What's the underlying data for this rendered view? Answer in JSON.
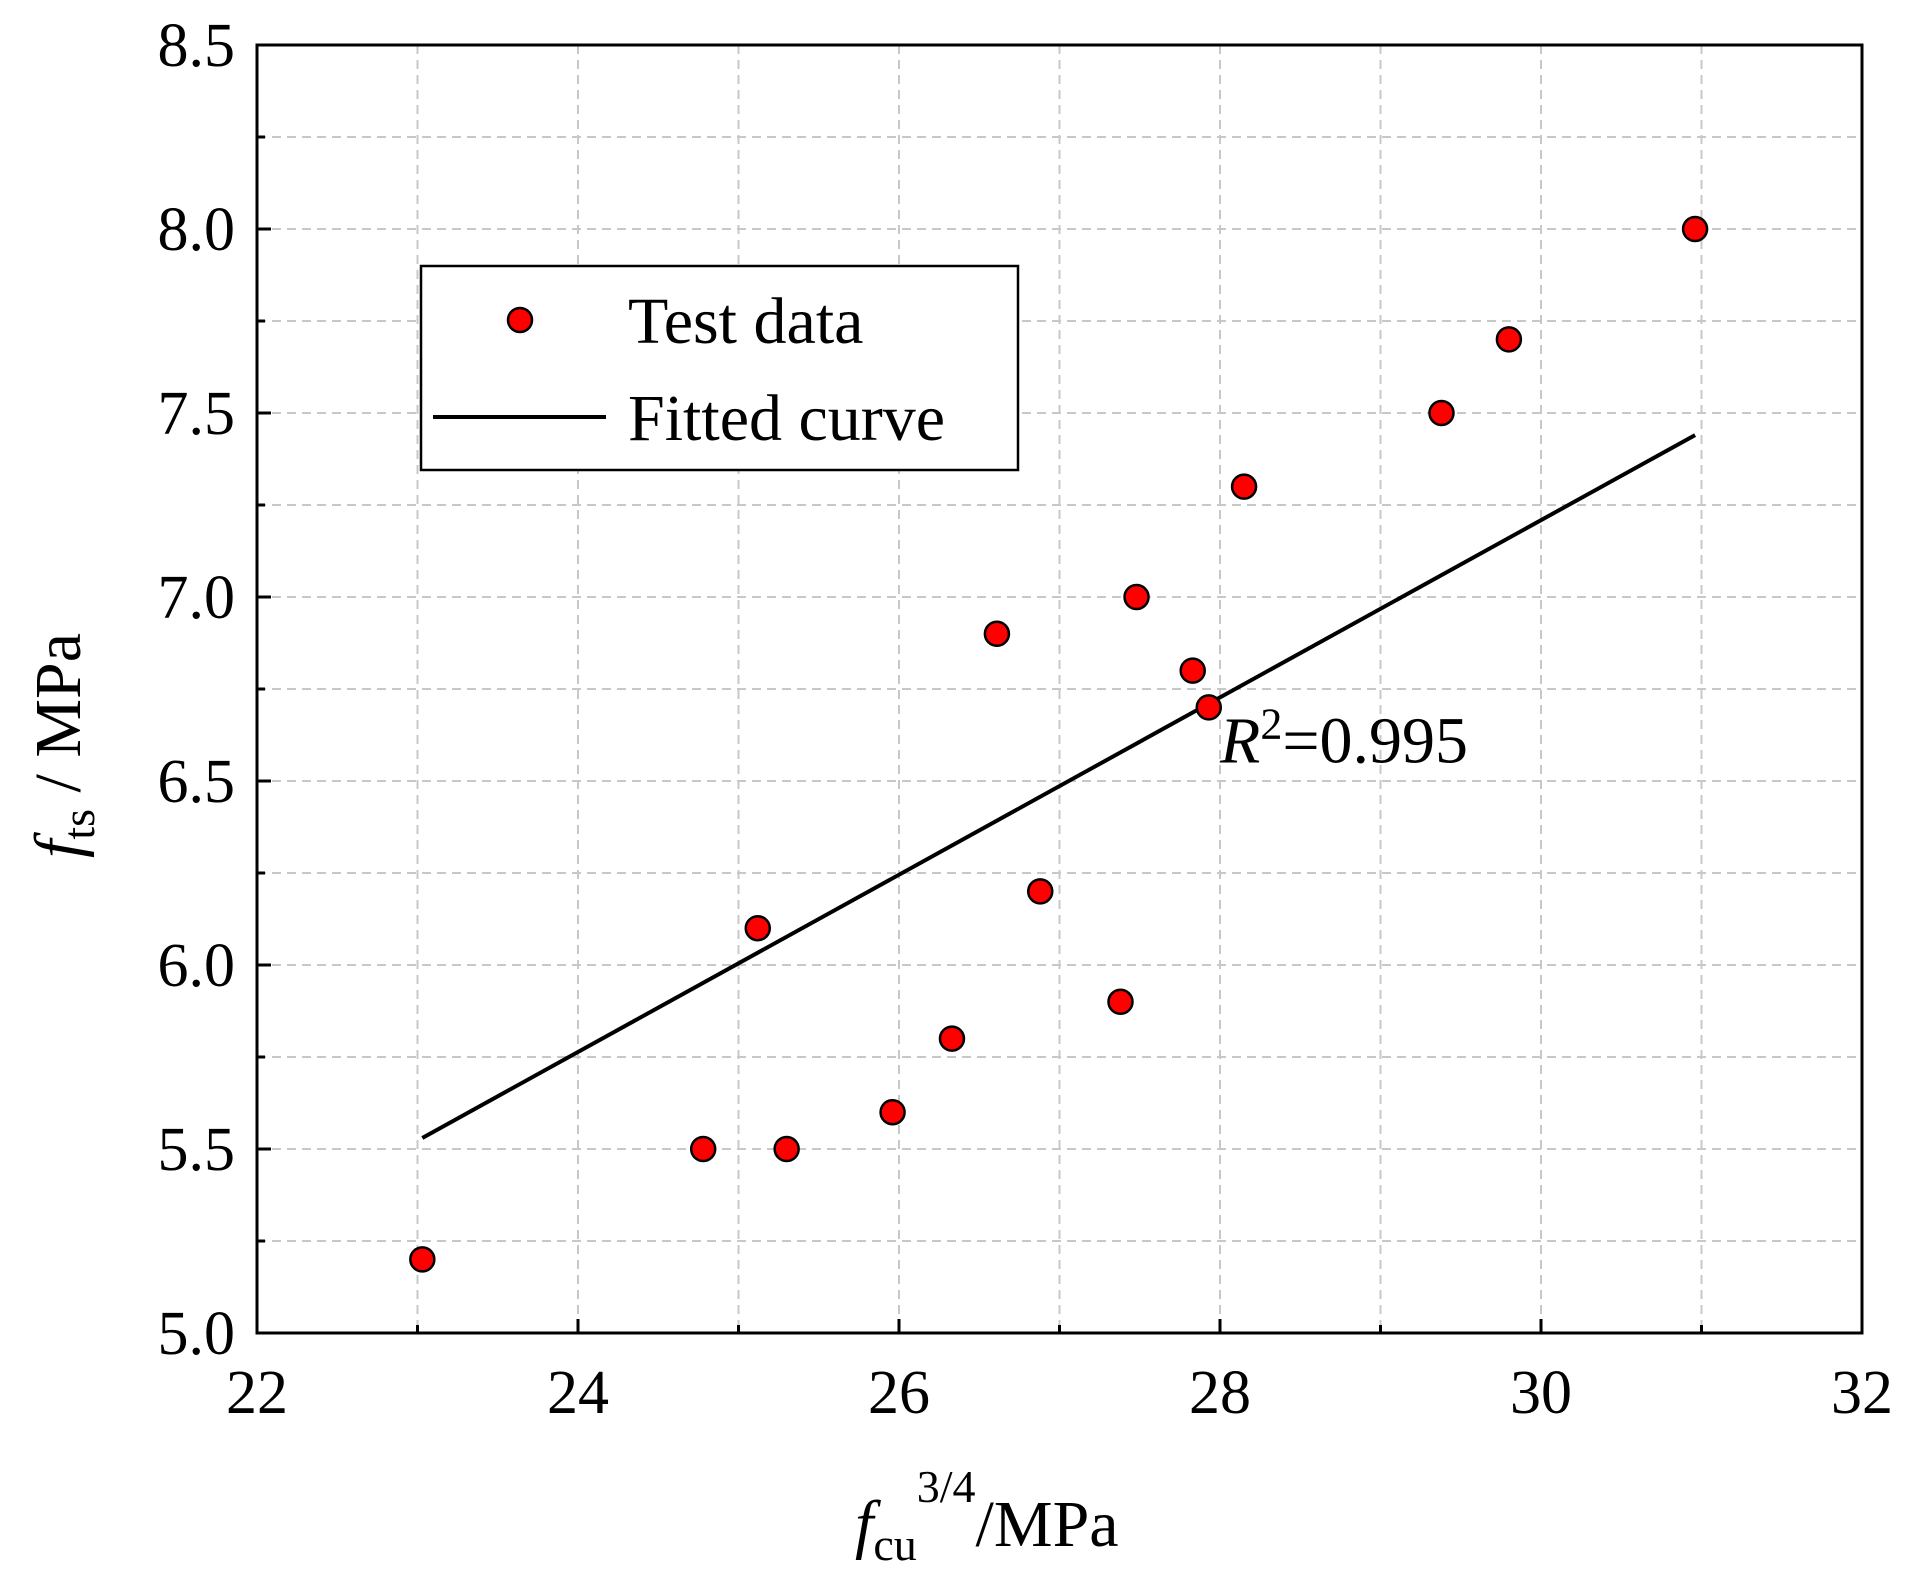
{
  "chart_data": {
    "type": "scatter",
    "xlabel_main": "f",
    "xlabel_sub": "cu",
    "xlabel_sup": "3/4",
    "xlabel_unit": "/MPa",
    "ylabel_main": "f",
    "ylabel_sub": "ts",
    "ylabel_unit": " / MPa",
    "xlim": [
      22,
      32
    ],
    "ylim": [
      5.0,
      8.5
    ],
    "x_ticks": [
      22,
      24,
      26,
      28,
      30,
      32
    ],
    "y_ticks": [
      5.0,
      5.5,
      6.0,
      6.5,
      7.0,
      7.5,
      8.0,
      8.5
    ],
    "x_tick_labels": [
      "22",
      "24",
      "26",
      "28",
      "30",
      "32"
    ],
    "y_tick_labels": [
      "5.0",
      "5.5",
      "6.0",
      "6.5",
      "7.0",
      "7.5",
      "8.0",
      "8.5"
    ],
    "grid": true,
    "legend": {
      "position": "upper-left",
      "entries": [
        {
          "label": "Test data",
          "kind": "marker"
        },
        {
          "label": "Fitted curve",
          "kind": "line"
        }
      ]
    },
    "series": [
      {
        "name": "Test data",
        "color": "#ff0000",
        "x": [
          23.03,
          24.78,
          25.12,
          25.3,
          25.96,
          26.33,
          26.61,
          26.88,
          27.38,
          27.48,
          27.83,
          27.93,
          28.15,
          29.38,
          29.8,
          30.96
        ],
        "y": [
          5.2,
          5.5,
          6.1,
          5.5,
          5.6,
          5.8,
          6.9,
          6.2,
          5.9,
          7.0,
          6.8,
          6.7,
          7.3,
          7.5,
          7.7,
          8.0
        ]
      },
      {
        "name": "Fitted curve",
        "color": "#000000",
        "x": [
          23.03,
          30.96
        ],
        "y": [
          5.53,
          7.44
        ]
      }
    ],
    "annotation": {
      "italic": "R",
      "sup": "2",
      "rest": "=0.995",
      "x": 28.0,
      "y": 6.55
    }
  }
}
